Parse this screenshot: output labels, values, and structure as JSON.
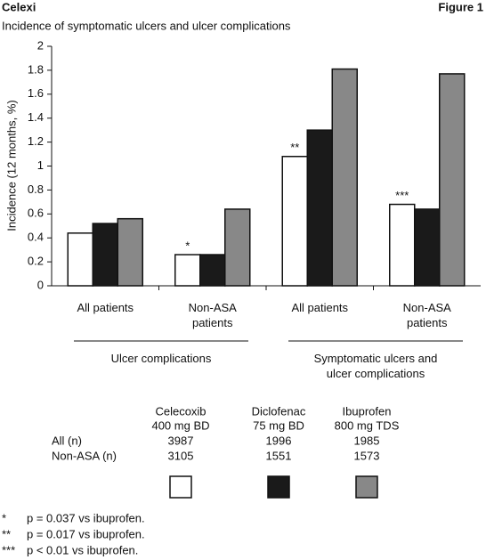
{
  "header": {
    "brand": "Celexi",
    "figure": "Figure 1"
  },
  "chart_data": {
    "type": "bar",
    "title": "Incidence of symptomatic ulcers and ulcer complications",
    "y_label": "Incidence (12 months, %)",
    "categories": [
      "All patients",
      "Non-ASA patients",
      "All patients",
      "Non-ASA patients"
    ],
    "category_groups": [
      {
        "label": "Ulcer complications",
        "from": 0,
        "to": 1
      },
      {
        "label": "Symptomatic ulcers and ulcer complications",
        "from": 2,
        "to": 3
      }
    ],
    "series": [
      {
        "name": "Celecoxib",
        "dose": "400 mg BD",
        "color": "#ffffff",
        "values": [
          0.44,
          0.26,
          1.08,
          0.68
        ]
      },
      {
        "name": "Diclofenac",
        "dose": "75 mg BD",
        "color": "#1a1a1a",
        "values": [
          0.52,
          0.26,
          1.3,
          0.64
        ]
      },
      {
        "name": "Ibuprofen",
        "dose": "800 mg TDS",
        "color": "#888888",
        "values": [
          0.56,
          0.64,
          1.81,
          1.77
        ]
      }
    ],
    "annotations": [
      {
        "text": "*",
        "series": 0,
        "index": 1
      },
      {
        "text": "**",
        "series": 0,
        "index": 2
      },
      {
        "text": "***",
        "series": 0,
        "index": 3
      }
    ],
    "ylim": [
      0,
      2
    ],
    "yticks": [
      0,
      0.2,
      0.4,
      0.6,
      0.8,
      1,
      1.2,
      1.4,
      1.6,
      1.8,
      2
    ],
    "table": {
      "rows": [
        {
          "label": "All (n)",
          "values": [
            3987,
            1996,
            1985
          ]
        },
        {
          "label": "Non-ASA (n)",
          "values": [
            3105,
            1551,
            1573
          ]
        }
      ]
    },
    "footnotes": [
      {
        "symbol": "*",
        "text": "p = 0.037 vs ibuprofen."
      },
      {
        "symbol": "**",
        "text": "p = 0.017 vs ibuprofen."
      },
      {
        "symbol": "***",
        "text": "p < 0.01 vs ibuprofen."
      }
    ]
  }
}
